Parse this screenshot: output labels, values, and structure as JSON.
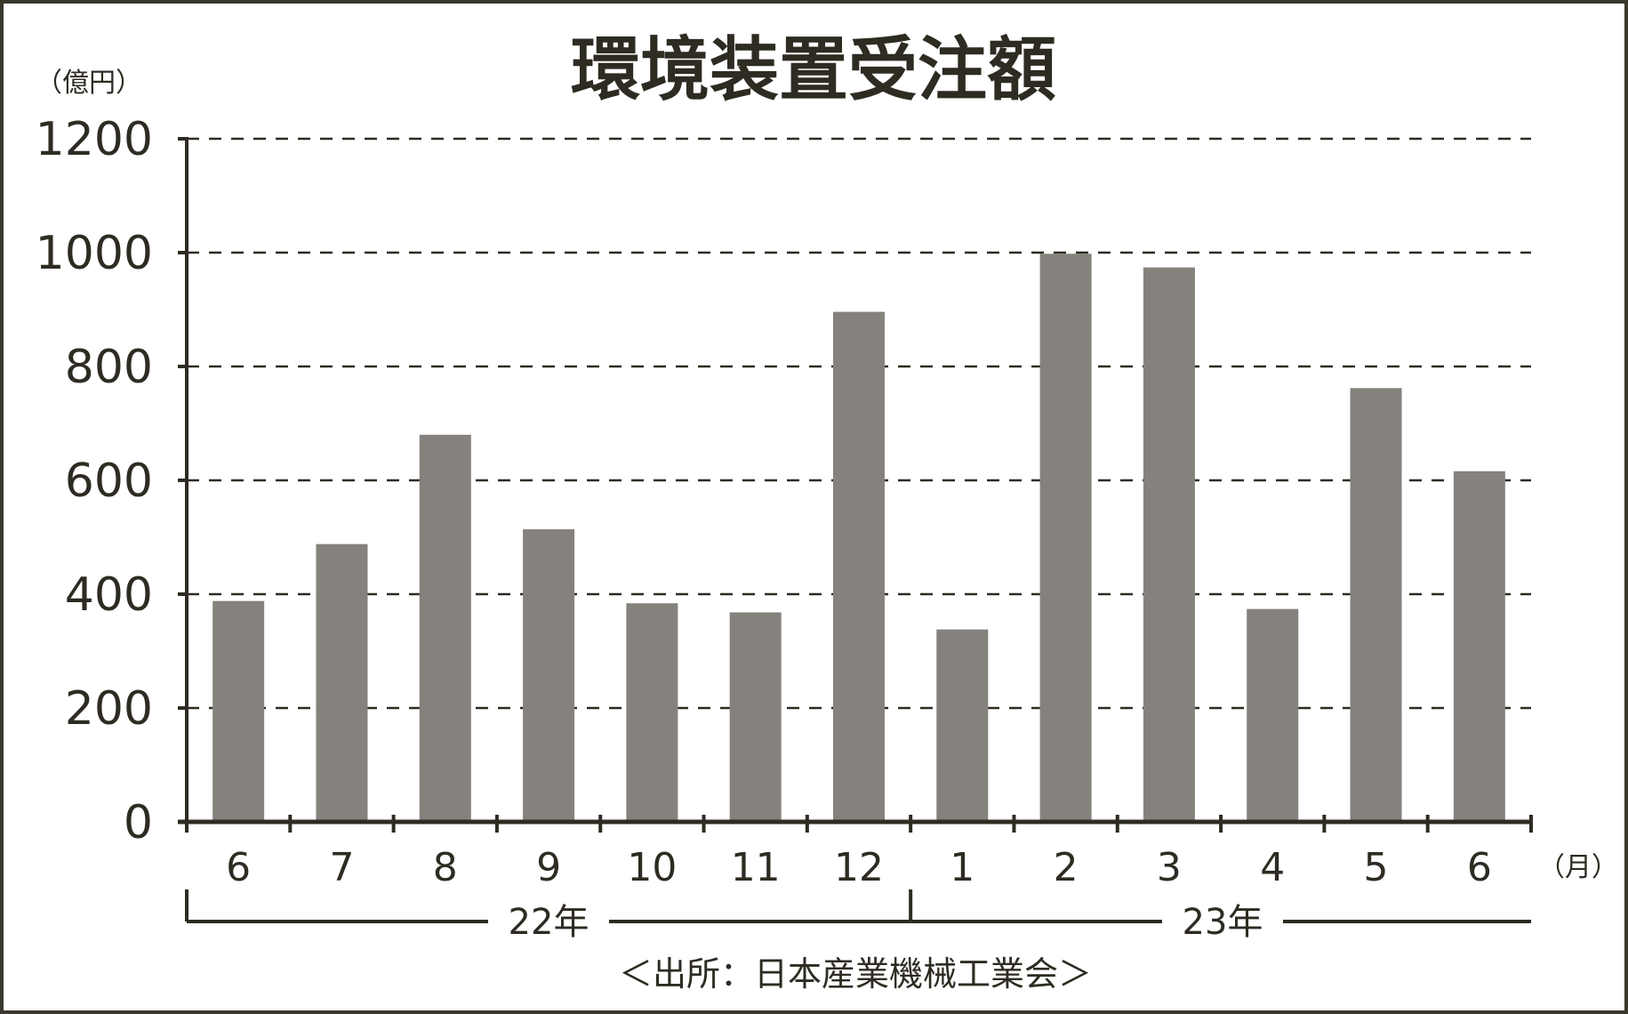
{
  "chart_data": {
    "type": "bar",
    "title": "環境装置受注額",
    "ylabel": "（億円）",
    "xlabel": "（月）",
    "ylim": [
      0,
      1200
    ],
    "yticks": [
      "0",
      "200",
      "400",
      "600",
      "800",
      "1000",
      "1200"
    ],
    "grid": true,
    "categories": [
      "6",
      "7",
      "8",
      "9",
      "10",
      "11",
      "12",
      "1",
      "2",
      "3",
      "4",
      "5",
      "6"
    ],
    "values": [
      388,
      488,
      680,
      514,
      384,
      368,
      896,
      338,
      998,
      974,
      374,
      762,
      616
    ],
    "year_groups": [
      {
        "label": "22年",
        "start": 0,
        "end": 6
      },
      {
        "label": "23年",
        "start": 7,
        "end": 12
      }
    ],
    "source": "＜出所：日本産業機械工業会＞",
    "colors": {
      "bar": "#85827d",
      "axis": "#2e2b22",
      "frame": "#3a382c"
    }
  }
}
